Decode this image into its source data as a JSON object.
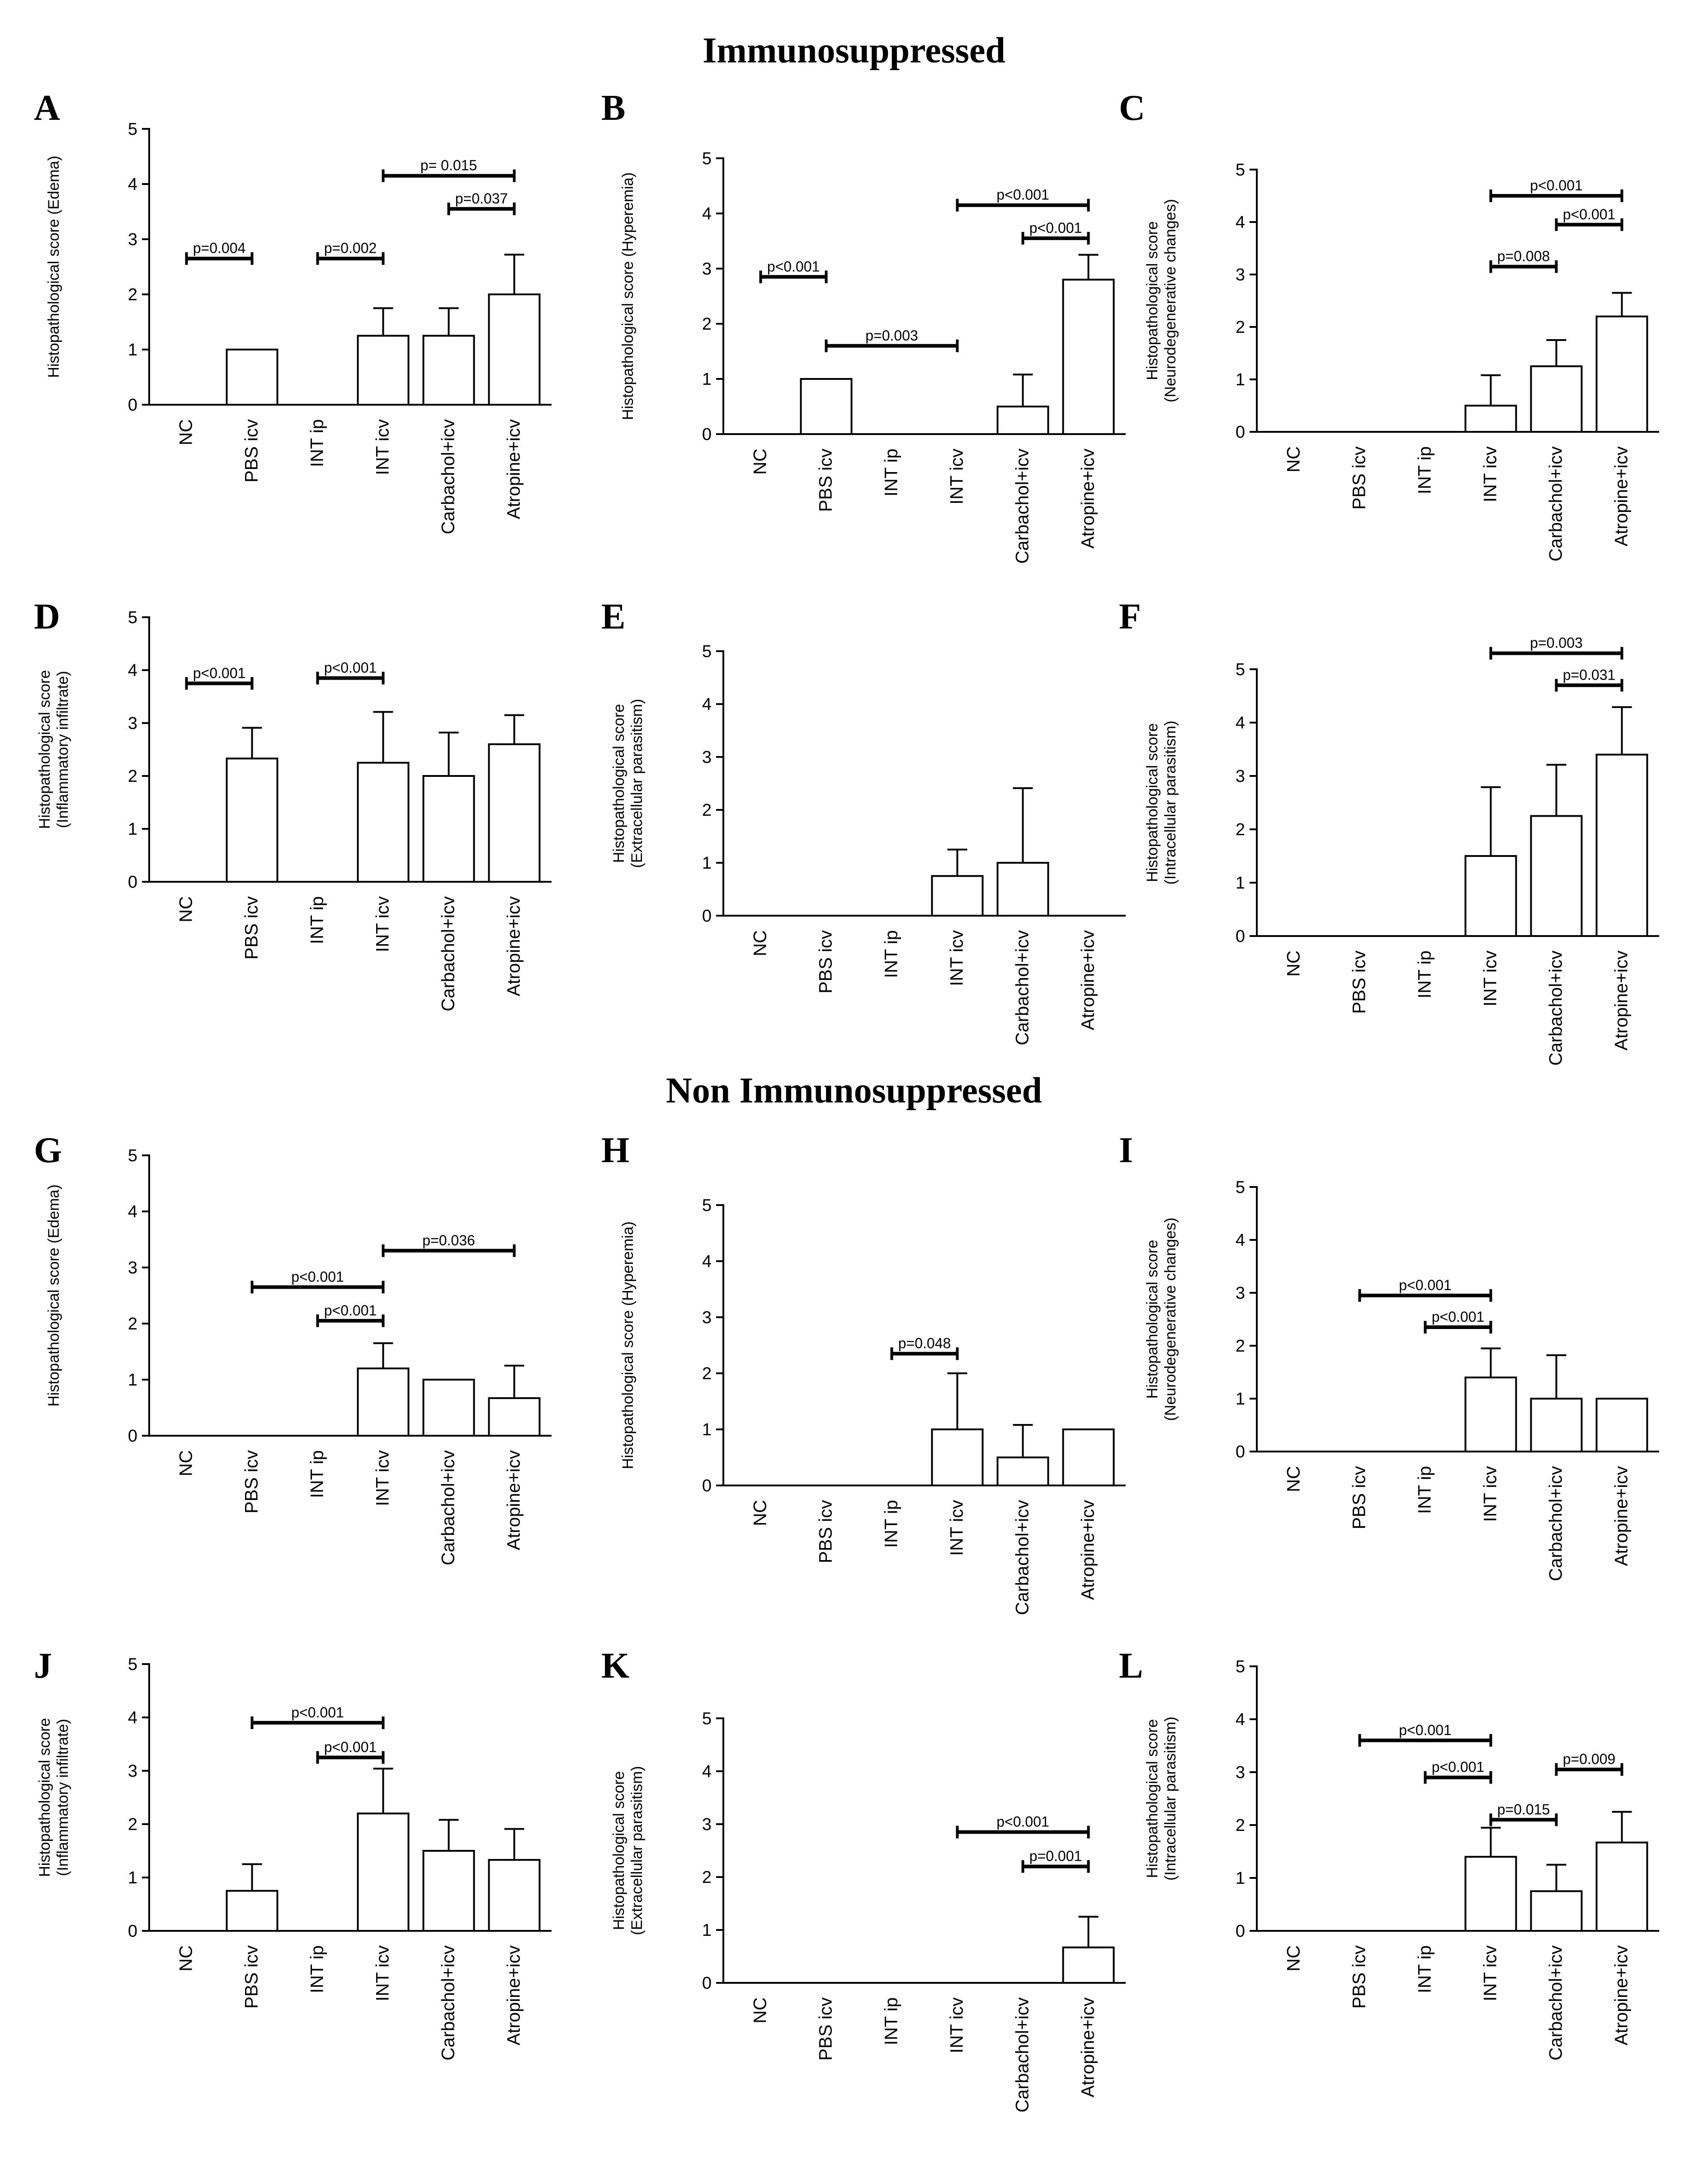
{
  "titles": {
    "top": "Immunosuppressed",
    "bottom": "Non Immunosuppressed"
  },
  "colors": {
    "ink": "#000000",
    "bar_fill": "#ffffff"
  },
  "chart_data": [
    {
      "panel": "A",
      "type": "bar",
      "title": "",
      "ylabel": [
        "Histopathological score (Edema)"
      ],
      "categories": [
        "NC",
        "PBS icv",
        "INT ip",
        "INT icv",
        "Carbachol+icv",
        "Atropine+icv"
      ],
      "values": [
        0,
        1,
        0,
        1.25,
        1.25,
        2
      ],
      "errors": [
        0,
        0,
        0,
        0.5,
        0.5,
        0.72
      ],
      "ylim": [
        0,
        5
      ],
      "yticks": [
        0,
        1,
        2,
        3,
        4,
        5
      ],
      "comparisons": [
        {
          "from": 0,
          "to": 1,
          "y": 2.65,
          "label": "p=0.004"
        },
        {
          "from": 2,
          "to": 3,
          "y": 2.65,
          "label": "p=0.002"
        },
        {
          "from": 3,
          "to": 5,
          "y": 4.15,
          "label": "p= 0.015"
        },
        {
          "from": 4,
          "to": 5,
          "y": 3.55,
          "label": "p=0.037"
        }
      ]
    },
    {
      "panel": "B",
      "type": "bar",
      "title": "",
      "ylabel": [
        "Histopathological score (Hyperemia)"
      ],
      "categories": [
        "NC",
        "PBS icv",
        "INT ip",
        "INT icv",
        "Carbachol+icv",
        "Atropine+icv"
      ],
      "values": [
        0,
        1,
        0,
        0,
        0.5,
        2.8
      ],
      "errors": [
        0,
        0,
        0,
        0,
        0.58,
        0.45
      ],
      "ylim": [
        0,
        5
      ],
      "yticks": [
        0,
        1,
        2,
        3,
        4,
        5
      ],
      "comparisons": [
        {
          "from": 0,
          "to": 1,
          "y": 2.85,
          "label": "p<0.001"
        },
        {
          "from": 1,
          "to": 3,
          "y": 1.6,
          "label": "p=0.003"
        },
        {
          "from": 3,
          "to": 5,
          "y": 4.15,
          "label": "p<0.001"
        },
        {
          "from": 4,
          "to": 5,
          "y": 3.55,
          "label": "p<0.001"
        }
      ]
    },
    {
      "panel": "C",
      "type": "bar",
      "title": "",
      "ylabel": [
        "Histopathological score",
        "(Neurodegenerative changes)"
      ],
      "categories": [
        "NC",
        "PBS icv",
        "INT ip",
        "INT icv",
        "Carbachol+icv",
        "Atropine+icv"
      ],
      "values": [
        0,
        0,
        0,
        0.5,
        1.25,
        2.2
      ],
      "errors": [
        0,
        0,
        0,
        0.58,
        0.5,
        0.45
      ],
      "ylim": [
        0,
        5
      ],
      "yticks": [
        0,
        1,
        2,
        3,
        4,
        5
      ],
      "comparisons": [
        {
          "from": 3,
          "to": 5,
          "y": 4.5,
          "label": "p<0.001"
        },
        {
          "from": 4,
          "to": 5,
          "y": 3.95,
          "label": "p<0.001"
        },
        {
          "from": 3,
          "to": 4,
          "y": 3.15,
          "label": "p=0.008"
        }
      ]
    },
    {
      "panel": "D",
      "type": "bar",
      "title": "",
      "ylabel": [
        "Histopathological score",
        "(Inflammatory infiltrate)"
      ],
      "categories": [
        "NC",
        "PBS icv",
        "INT ip",
        "INT icv",
        "Carbachol+icv",
        "Atropine+icv"
      ],
      "values": [
        0,
        2.33,
        0,
        2.25,
        2,
        2.6
      ],
      "errors": [
        0,
        0.58,
        0,
        0.96,
        0.82,
        0.55
      ],
      "ylim": [
        0,
        5
      ],
      "yticks": [
        0,
        1,
        2,
        3,
        4,
        5
      ],
      "comparisons": [
        {
          "from": 0,
          "to": 1,
          "y": 3.75,
          "label": "p<0.001"
        },
        {
          "from": 2,
          "to": 3,
          "y": 3.85,
          "label": "p<0.001"
        }
      ]
    },
    {
      "panel": "E",
      "type": "bar",
      "title": "",
      "ylabel": [
        "Histopathological score",
        "(Extracellular parasitism)"
      ],
      "categories": [
        "NC",
        "PBS icv",
        "INT ip",
        "INT icv",
        "Carbachol+icv",
        "Atropine+icv"
      ],
      "values": [
        0,
        0,
        0,
        0.75,
        1,
        0
      ],
      "errors": [
        0,
        0,
        0,
        0.5,
        1.41,
        0
      ],
      "ylim": [
        0,
        5
      ],
      "yticks": [
        0,
        1,
        2,
        3,
        4,
        5
      ],
      "comparisons": []
    },
    {
      "panel": "F",
      "type": "bar",
      "title": "",
      "ylabel": [
        "Histopathological score",
        "(Intracellular parasitism)"
      ],
      "categories": [
        "NC",
        "PBS icv",
        "INT ip",
        "INT icv",
        "Carbachol+icv",
        "Atropine+icv"
      ],
      "values": [
        0,
        0,
        0,
        1.5,
        2.25,
        3.4
      ],
      "errors": [
        0,
        0,
        0,
        1.29,
        0.96,
        0.89
      ],
      "ylim": [
        0,
        5
      ],
      "yticks": [
        0,
        1,
        2,
        3,
        4,
        5
      ],
      "comparisons": [
        {
          "from": 3,
          "to": 5,
          "y": 5.3,
          "label": "p=0.003"
        },
        {
          "from": 4,
          "to": 5,
          "y": 4.7,
          "label": "p=0.031"
        }
      ]
    },
    {
      "panel": "G",
      "type": "bar",
      "title": "",
      "ylabel": [
        "Histopathological score (Edema)"
      ],
      "categories": [
        "NC",
        "PBS icv",
        "INT ip",
        "INT icv",
        "Carbachol+icv",
        "Atropine+icv"
      ],
      "values": [
        0,
        0,
        0,
        1.2,
        1,
        0.67
      ],
      "errors": [
        0,
        0,
        0,
        0.45,
        0,
        0.58
      ],
      "ylim": [
        0,
        5
      ],
      "yticks": [
        0,
        1,
        2,
        3,
        4,
        5
      ],
      "comparisons": [
        {
          "from": 3,
          "to": 5,
          "y": 3.3,
          "label": "p=0.036"
        },
        {
          "from": 1,
          "to": 3,
          "y": 2.65,
          "label": "p<0.001"
        },
        {
          "from": 2,
          "to": 3,
          "y": 2.05,
          "label": "p<0.001"
        }
      ]
    },
    {
      "panel": "H",
      "type": "bar",
      "title": "",
      "ylabel": [
        "Histopathological score (Hyperemia)"
      ],
      "categories": [
        "NC",
        "PBS icv",
        "INT ip",
        "INT icv",
        "Carbachol+icv",
        "Atropine+icv"
      ],
      "values": [
        0,
        0,
        0,
        1,
        0.5,
        1
      ],
      "errors": [
        0,
        0,
        0,
        1,
        0.58,
        0
      ],
      "ylim": [
        0,
        5
      ],
      "yticks": [
        0,
        1,
        2,
        3,
        4,
        5
      ],
      "comparisons": [
        {
          "from": 2,
          "to": 3,
          "y": 2.35,
          "label": "p=0.048"
        }
      ]
    },
    {
      "panel": "I",
      "type": "bar",
      "title": "",
      "ylabel": [
        "Histopathological score",
        "(Neurodegenerative changes)"
      ],
      "categories": [
        "NC",
        "PBS icv",
        "INT ip",
        "INT icv",
        "Carbachol+icv",
        "Atropine+icv"
      ],
      "values": [
        0,
        0,
        0,
        1.4,
        1,
        1
      ],
      "errors": [
        0,
        0,
        0,
        0.55,
        0.82,
        0
      ],
      "ylim": [
        0,
        5
      ],
      "yticks": [
        0,
        1,
        2,
        3,
        4,
        5
      ],
      "comparisons": [
        {
          "from": 1,
          "to": 3,
          "y": 2.95,
          "label": "p<0.001"
        },
        {
          "from": 2,
          "to": 3,
          "y": 2.35,
          "label": "p<0.001"
        }
      ]
    },
    {
      "panel": "J",
      "type": "bar",
      "title": "",
      "ylabel": [
        "Histopathological score",
        "(Inflammatory infiltrate)"
      ],
      "categories": [
        "NC",
        "PBS icv",
        "INT ip",
        "INT icv",
        "Carbachol+icv",
        "Atropine+icv"
      ],
      "values": [
        0,
        0.75,
        0,
        2.2,
        1.5,
        1.33
      ],
      "errors": [
        0,
        0.5,
        0,
        0.84,
        0.58,
        0.58
      ],
      "ylim": [
        0,
        5
      ],
      "yticks": [
        0,
        1,
        2,
        3,
        4,
        5
      ],
      "comparisons": [
        {
          "from": 1,
          "to": 3,
          "y": 3.9,
          "label": "p<0.001"
        },
        {
          "from": 2,
          "to": 3,
          "y": 3.25,
          "label": "p<0.001"
        }
      ]
    },
    {
      "panel": "K",
      "type": "bar",
      "title": "",
      "ylabel": [
        "Histopathological score",
        "(Extracellular parasitism)"
      ],
      "categories": [
        "NC",
        "PBS icv",
        "INT ip",
        "INT icv",
        "Carbachol+icv",
        "Atropine+icv"
      ],
      "values": [
        0,
        0,
        0,
        0,
        0,
        0.67
      ],
      "errors": [
        0,
        0,
        0,
        0,
        0,
        0.58
      ],
      "ylim": [
        0,
        5
      ],
      "yticks": [
        0,
        1,
        2,
        3,
        4,
        5
      ],
      "comparisons": [
        {
          "from": 3,
          "to": 5,
          "y": 2.85,
          "label": "p<0.001"
        },
        {
          "from": 4,
          "to": 5,
          "y": 2.2,
          "label": "p=0.001"
        }
      ]
    },
    {
      "panel": "L",
      "type": "bar",
      "title": "",
      "ylabel": [
        "Histopathological score",
        "(Intracellular parasitism)"
      ],
      "categories": [
        "NC",
        "PBS icv",
        "INT ip",
        "INT icv",
        "Carbachol+icv",
        "Atropine+icv"
      ],
      "values": [
        0,
        0,
        0,
        1.4,
        0.75,
        1.67
      ],
      "errors": [
        0,
        0,
        0,
        0.55,
        0.5,
        0.58
      ],
      "ylim": [
        0,
        5
      ],
      "yticks": [
        0,
        1,
        2,
        3,
        4,
        5
      ],
      "comparisons": [
        {
          "from": 1,
          "to": 3,
          "y": 3.6,
          "label": "p<0.001"
        },
        {
          "from": 2,
          "to": 3,
          "y": 2.9,
          "label": "p<0.001"
        },
        {
          "from": 3,
          "to": 4,
          "y": 2.1,
          "label": "p=0.015"
        },
        {
          "from": 4,
          "to": 5,
          "y": 3.05,
          "label": "p=0.009"
        }
      ]
    }
  ]
}
